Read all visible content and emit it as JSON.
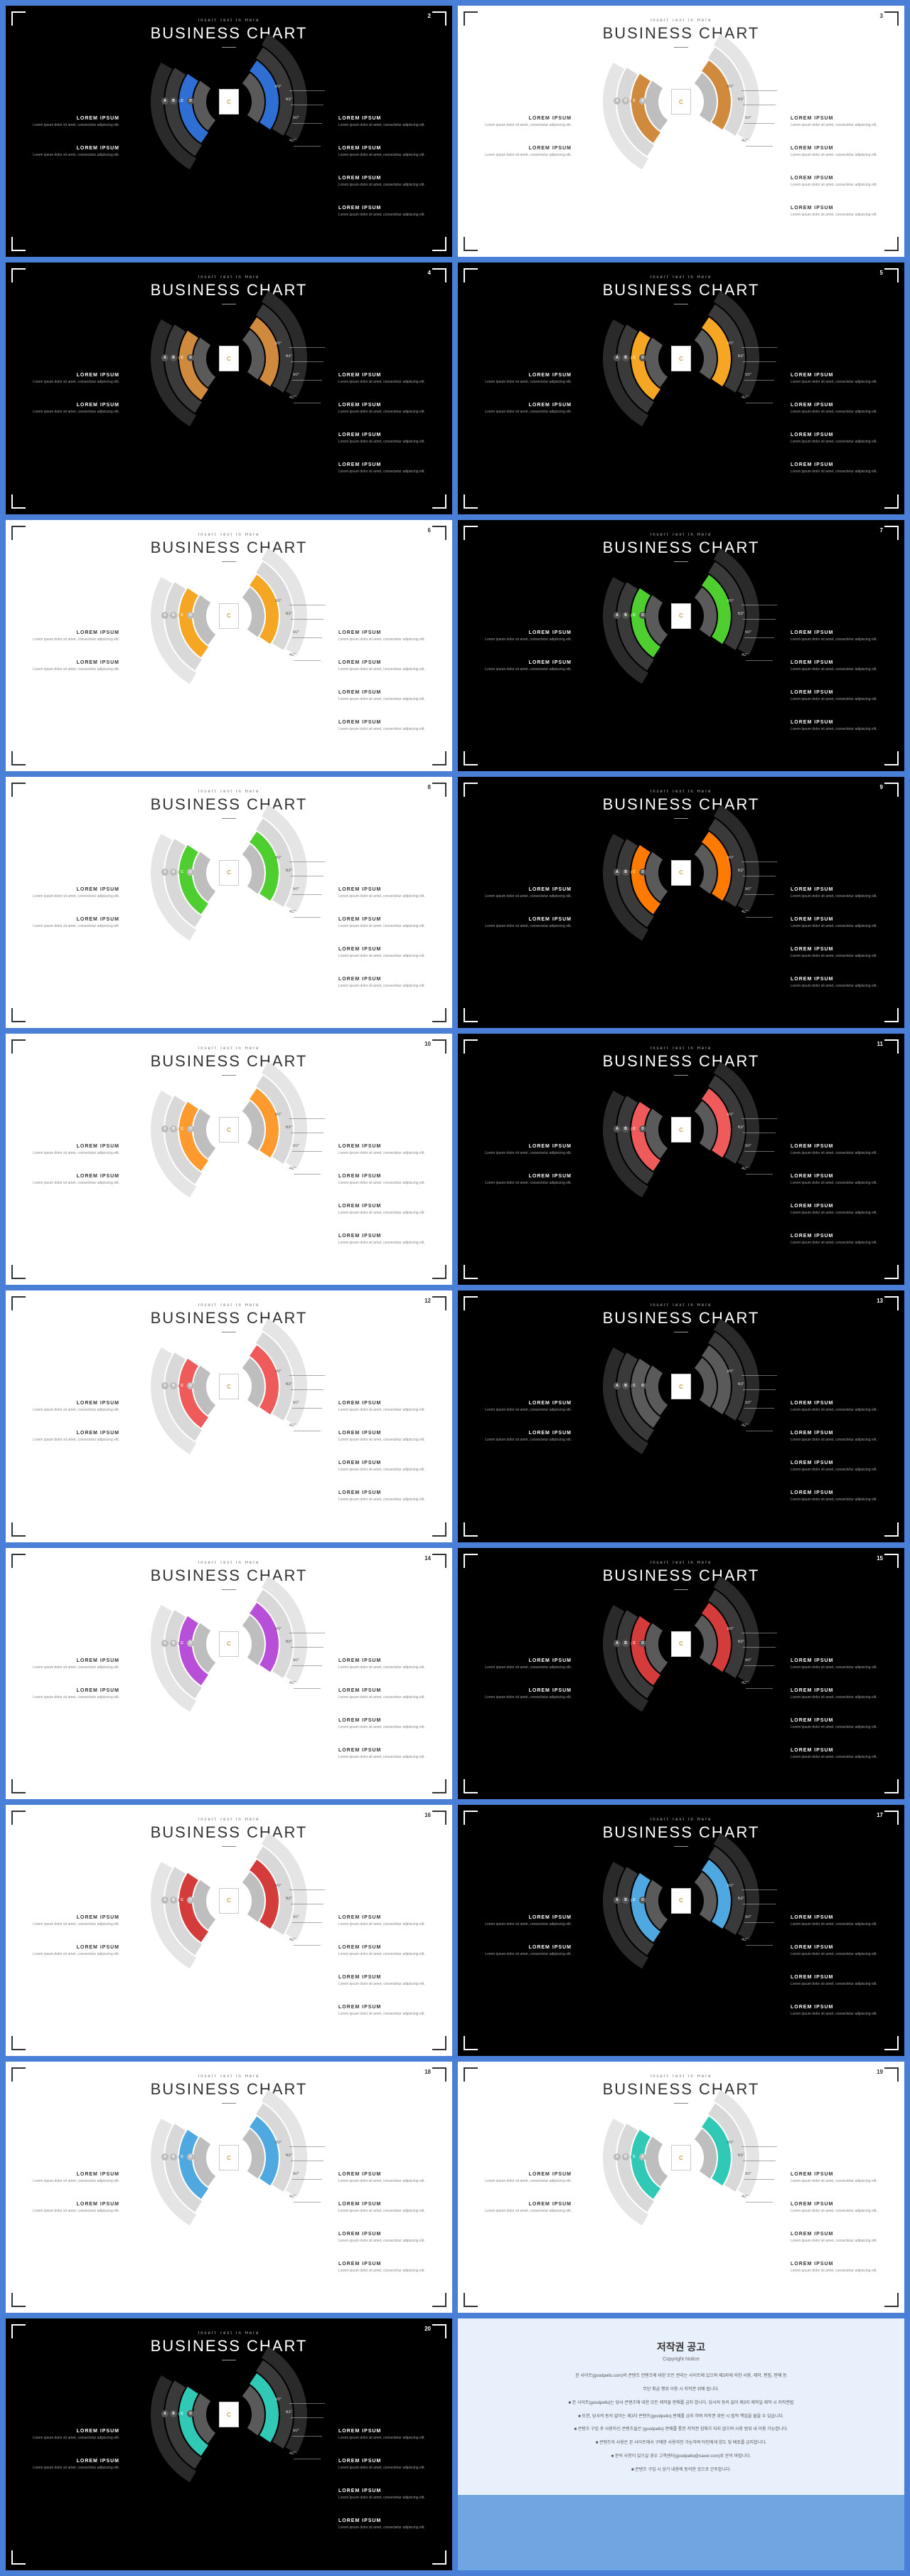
{
  "common": {
    "subtitle": "Insert Text In Here",
    "title": "BUSINESS CHART",
    "label_title": "LOREM IPSUM",
    "label_text": "Lorem ipsum dolor sit amet, consectetur adipiscing elit.",
    "ticks": [
      "80°",
      "63°",
      "50°",
      "42°"
    ],
    "dot_labels": [
      "A",
      "B",
      "C",
      "D"
    ],
    "center_label": "C",
    "ring_greys_dark": [
      "#2a2a2a",
      "#3a3a3a",
      "#4a4a4a",
      "#5a5a5a"
    ],
    "ring_greys_light": [
      "#e5e5e5",
      "#d8d8d8",
      "#cbcbcb",
      "#bebebe"
    ],
    "dot_bg_dark": "#555",
    "dot_bg_light": "#bbb"
  },
  "slides": [
    {
      "num": "2",
      "theme": "dark",
      "accent": "#2f6fd4"
    },
    {
      "num": "3",
      "theme": "light",
      "accent": "#d08a3e"
    },
    {
      "num": "4",
      "theme": "dark",
      "accent": "#d08a3e"
    },
    {
      "num": "5",
      "theme": "dark",
      "accent": "#f5a623"
    },
    {
      "num": "6",
      "theme": "light",
      "accent": "#f5a623"
    },
    {
      "num": "7",
      "theme": "dark",
      "accent": "#4fcf2f"
    },
    {
      "num": "8",
      "theme": "light",
      "accent": "#4fcf2f"
    },
    {
      "num": "9",
      "theme": "dark",
      "accent": "#ff7a00"
    },
    {
      "num": "10",
      "theme": "light",
      "accent": "#ff9a2e"
    },
    {
      "num": "11",
      "theme": "dark",
      "accent": "#ef5b5b"
    },
    {
      "num": "12",
      "theme": "light",
      "accent": "#ef5b5b"
    },
    {
      "num": "13",
      "theme": "dark",
      "accent": "#5a5a5a"
    },
    {
      "num": "14",
      "theme": "light",
      "accent": "#b84fd8"
    },
    {
      "num": "15",
      "theme": "dark",
      "accent": "#d43c3c"
    },
    {
      "num": "16",
      "theme": "light",
      "accent": "#d43c3c"
    },
    {
      "num": "17",
      "theme": "dark",
      "accent": "#4fa8e0"
    },
    {
      "num": "18",
      "theme": "light",
      "accent": "#4fa8e0"
    },
    {
      "num": "19",
      "theme": "light",
      "accent": "#2fc9b5"
    },
    {
      "num": "20",
      "theme": "dark",
      "accent": "#2fc9b5"
    }
  ],
  "notice": {
    "title": "저작권 공고",
    "subtitle": "Copyright Notice",
    "lines": [
      "본 사이트(goodpello.com)의 콘텐츠 컨텐츠에 대한 모든 권리는 사이트에 있으며 제3자에 의한 사용, 제작, 편집, 판매 등",
      "무단 취급 행위 이용 시 저작권 위배 됩니다.",
      "■ 본 사이트(goodpello)는 당사 콘텐츠에 대한 모든 제작물 판매를 금지 합니다. 당사의 동의 없이 제3자 제작일 제작 시 저작권법",
      "■ 또한, 당사의 동의 없이는 제3자 콘텐츠(goodpello) 판매를 금지 하며 저작권 위반 시 법적 책임을 물을 수 있습니다.",
      "■ 콘텐츠 구입 후 사용하신 콘텐츠들은 (goodpello) 판매를 통한 저작권 침해가 되지 않으며 사용 범위 내 이용 가능합니다.",
      "■ 콘텐츠의 사용은 본 사이트에서 구매한 사용자만 가능하며 타인에게 양도 및 배포를 금지합니다.",
      "■ 문의 사항이 있으실 경우 고객센터(goodpello@naver.com)로 문의 바랍니다.",
      "■ 콘텐츠 구입 시 상기 내용에 동의한 것으로 간주합니다."
    ]
  }
}
